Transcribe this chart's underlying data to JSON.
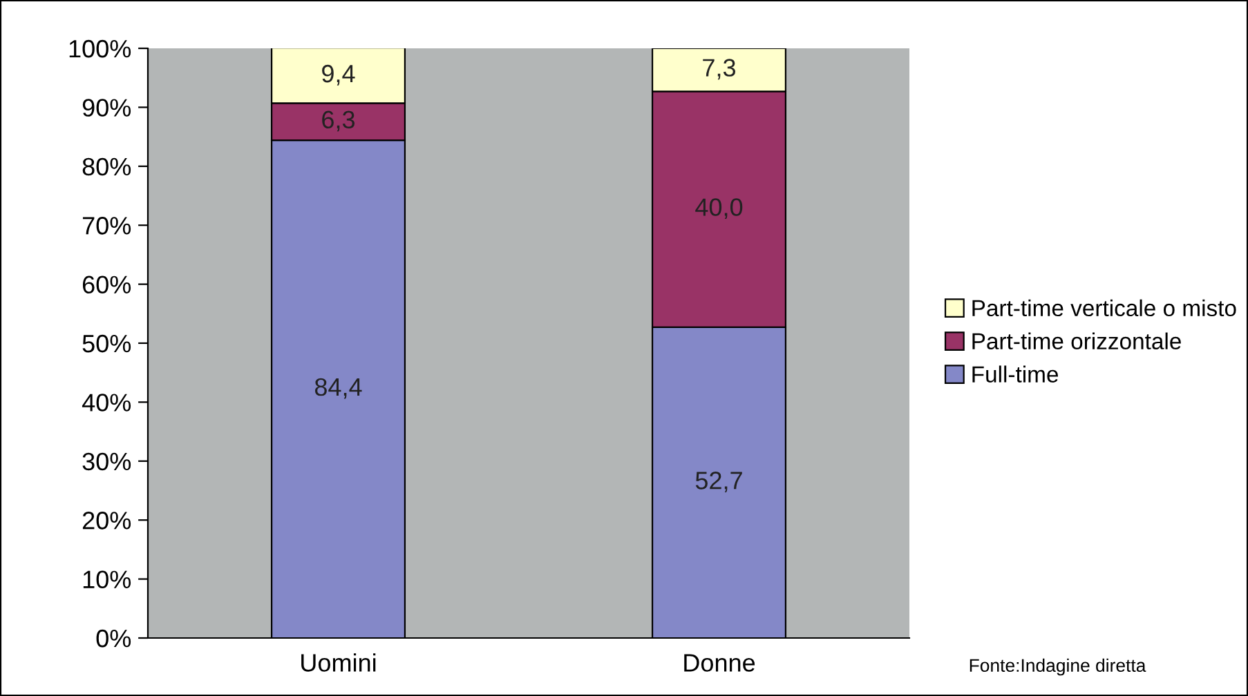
{
  "chart_data": {
    "type": "bar",
    "stacked": true,
    "categories": [
      "Uomini",
      "Donne"
    ],
    "series": [
      {
        "name": "Full-time",
        "color": "#8488c8",
        "values": [
          84.4,
          52.7
        ],
        "value_labels": [
          "84,4",
          "52,7"
        ]
      },
      {
        "name": "Part-time orizzontale",
        "color": "#993366",
        "values": [
          6.3,
          40.0
        ],
        "value_labels": [
          "6,3",
          "40,0"
        ]
      },
      {
        "name": "Part-time verticale o misto",
        "color": "#ffffcc",
        "values": [
          9.4,
          7.3
        ],
        "value_labels": [
          "9,4",
          "7,3"
        ]
      }
    ],
    "ylim": [
      0,
      100
    ],
    "yticks": [
      {
        "value": 0,
        "label": "0%"
      },
      {
        "value": 10,
        "label": "10%"
      },
      {
        "value": 20,
        "label": "20%"
      },
      {
        "value": 30,
        "label": "30%"
      },
      {
        "value": 40,
        "label": "40%"
      },
      {
        "value": 50,
        "label": "50%"
      },
      {
        "value": 60,
        "label": "60%"
      },
      {
        "value": 70,
        "label": "70%"
      },
      {
        "value": 80,
        "label": "80%"
      },
      {
        "value": 90,
        "label": "90%"
      },
      {
        "value": 100,
        "label": "100%"
      }
    ],
    "grid": false,
    "legend": "right",
    "annotations": [
      "Fonte:Indagine diretta"
    ]
  }
}
